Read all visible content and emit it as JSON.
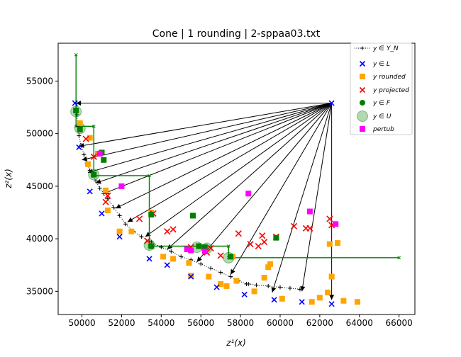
{
  "chart_data": {
    "type": "scatter",
    "title": "Cone | 1 rounding | 2-sppaa03.txt",
    "xlabel": "z¹(x)",
    "ylabel": "z²(x)",
    "xlim": [
      48800,
      66800
    ],
    "ylim": [
      32800,
      58600
    ],
    "xticks": [
      50000,
      52000,
      54000,
      56000,
      58000,
      60000,
      62000,
      64000,
      66000
    ],
    "yticks": [
      35000,
      40000,
      45000,
      50000,
      55000
    ],
    "xtick_labels": [
      "50000",
      "52000",
      "54000",
      "56000",
      "58000",
      "60000",
      "62000",
      "64000",
      "66000"
    ],
    "ytick_labels": [
      "35000",
      "40000",
      "45000",
      "50000",
      "55000"
    ],
    "grid": false,
    "legend_position": "top-right",
    "legend": [
      {
        "key": "YN",
        "label": "y ∈ Y_N"
      },
      {
        "key": "L",
        "label": "y ∈ L"
      },
      {
        "key": "rounded",
        "label": "y rounded"
      },
      {
        "key": "projected",
        "label": "y projected"
      },
      {
        "key": "F",
        "label": "y ∈ F"
      },
      {
        "key": "U",
        "label": "y ∈ U"
      },
      {
        "key": "pertub",
        "label": "pertub"
      }
    ],
    "colors": {
      "YN": "#000000",
      "L": "#0000ff",
      "rounded": "#ffa500",
      "projected": "#ff0000",
      "F": "#008000",
      "U": "#008000",
      "pertub": "#ff00ff",
      "cone": "#000000",
      "staircase": "#008000"
    },
    "nondominated_frontier": [
      [
        49700,
        52900
      ],
      [
        49750,
        51800
      ],
      [
        49800,
        50700
      ],
      [
        49850,
        49800
      ],
      [
        49950,
        48900
      ],
      [
        50100,
        48000
      ],
      [
        50250,
        47200
      ],
      [
        50400,
        46500
      ],
      [
        50550,
        46000
      ],
      [
        50700,
        45500
      ],
      [
        50900,
        44800
      ],
      [
        51100,
        44300
      ],
      [
        51300,
        43800
      ],
      [
        51600,
        43000
      ],
      [
        51900,
        42200
      ],
      [
        52200,
        41400
      ],
      [
        52600,
        40700
      ],
      [
        53000,
        40200
      ],
      [
        53500,
        39700
      ],
      [
        54000,
        39200
      ],
      [
        54500,
        38800
      ],
      [
        55000,
        38300
      ],
      [
        55500,
        38000
      ],
      [
        56000,
        37600
      ],
      [
        56500,
        37200
      ],
      [
        57000,
        36800
      ],
      [
        57500,
        36400
      ],
      [
        57900,
        36000
      ],
      [
        58300,
        35700
      ]
    ],
    "nondominated_tail": [
      [
        58400,
        35700
      ],
      [
        58800,
        35600
      ],
      [
        59400,
        35500
      ],
      [
        60000,
        35400
      ],
      [
        60500,
        35300
      ],
      [
        61000,
        35200
      ]
    ],
    "upper_bounds_L": [
      [
        62600,
        52900
      ],
      [
        49650,
        52900
      ],
      [
        49850,
        48700
      ],
      [
        50400,
        44500
      ],
      [
        51000,
        42400
      ],
      [
        51900,
        40200
      ],
      [
        53400,
        38100
      ],
      [
        54300,
        37500
      ],
      [
        55500,
        36400
      ],
      [
        56800,
        35400
      ],
      [
        58200,
        34700
      ],
      [
        59700,
        34200
      ],
      [
        61100,
        34000
      ],
      [
        62600,
        33800
      ]
    ],
    "cone_apex": [
      62600,
      52900
    ],
    "cone_targets": [
      [
        49700,
        52900
      ],
      [
        49850,
        48800
      ],
      [
        50000,
        47500
      ],
      [
        50300,
        46300
      ],
      [
        50700,
        45300
      ],
      [
        51100,
        44300
      ],
      [
        51700,
        42900
      ],
      [
        52300,
        41600
      ],
      [
        53200,
        40200
      ],
      [
        54300,
        39000
      ],
      [
        55800,
        37800
      ],
      [
        57500,
        36600
      ],
      [
        59600,
        34900
      ],
      [
        61100,
        35000
      ],
      [
        62600,
        34200
      ]
    ],
    "staircase": [
      [
        49700,
        57500
      ],
      [
        49700,
        50700
      ],
      [
        50600,
        50700
      ],
      [
        50600,
        46000
      ],
      [
        53400,
        46000
      ],
      [
        53400,
        39300
      ],
      [
        57400,
        39300
      ],
      [
        57400,
        38200
      ],
      [
        66000,
        38200
      ]
    ],
    "rounded": [
      [
        49900,
        51000
      ],
      [
        50400,
        49600
      ],
      [
        50300,
        47100
      ],
      [
        50800,
        48100
      ],
      [
        51200,
        44600
      ],
      [
        51300,
        42700
      ],
      [
        51900,
        40700
      ],
      [
        52500,
        40700
      ],
      [
        53500,
        42500
      ],
      [
        54100,
        38300
      ],
      [
        54600,
        38100
      ],
      [
        55400,
        37700
      ],
      [
        55500,
        36500
      ],
      [
        55900,
        39300
      ],
      [
        56400,
        36400
      ],
      [
        57000,
        35700
      ],
      [
        57300,
        35500
      ],
      [
        57600,
        38300
      ],
      [
        57800,
        36000
      ],
      [
        58700,
        35000
      ],
      [
        59200,
        36300
      ],
      [
        59500,
        37600
      ],
      [
        59400,
        37300
      ],
      [
        60100,
        34300
      ],
      [
        61600,
        34000
      ],
      [
        62000,
        34400
      ],
      [
        62400,
        34900
      ],
      [
        62500,
        39500
      ],
      [
        62600,
        36400
      ],
      [
        62900,
        39600
      ],
      [
        63200,
        34100
      ],
      [
        63900,
        34000
      ]
    ],
    "projected": [
      [
        50200,
        49500
      ],
      [
        50600,
        47800
      ],
      [
        51200,
        43500
      ],
      [
        51300,
        44100
      ],
      [
        52900,
        41900
      ],
      [
        53300,
        39800
      ],
      [
        53600,
        42400
      ],
      [
        54300,
        40700
      ],
      [
        54600,
        40900
      ],
      [
        55500,
        39200
      ],
      [
        56300,
        38700
      ],
      [
        56500,
        39100
      ],
      [
        57000,
        38400
      ],
      [
        57900,
        40500
      ],
      [
        58500,
        39500
      ],
      [
        58900,
        39300
      ],
      [
        59100,
        40300
      ],
      [
        59200,
        39700
      ],
      [
        59800,
        40200
      ],
      [
        60700,
        41200
      ],
      [
        61300,
        41000
      ],
      [
        61500,
        41000
      ],
      [
        62500,
        41900
      ],
      [
        62600,
        41300
      ]
    ],
    "feasible_F": [
      [
        49700,
        52200
      ],
      [
        49900,
        50400
      ],
      [
        50600,
        46100
      ],
      [
        51000,
        48200
      ],
      [
        51100,
        47500
      ],
      [
        53500,
        42300
      ],
      [
        53500,
        39300
      ],
      [
        55600,
        42200
      ],
      [
        55900,
        39300
      ],
      [
        56200,
        39200
      ],
      [
        57500,
        38300
      ],
      [
        59800,
        40100
      ]
    ],
    "upper_set_U": [
      [
        49700,
        52100
      ],
      [
        49900,
        50500
      ],
      [
        50600,
        46100
      ],
      [
        53400,
        39400
      ],
      [
        55800,
        39200
      ],
      [
        56300,
        39100
      ],
      [
        57400,
        38200
      ]
    ],
    "pertub": [
      [
        50900,
        48100
      ],
      [
        52000,
        45000
      ],
      [
        55300,
        39000
      ],
      [
        55500,
        38900
      ],
      [
        56200,
        38800
      ],
      [
        58400,
        44300
      ],
      [
        61500,
        42600
      ],
      [
        62800,
        41400
      ]
    ]
  }
}
